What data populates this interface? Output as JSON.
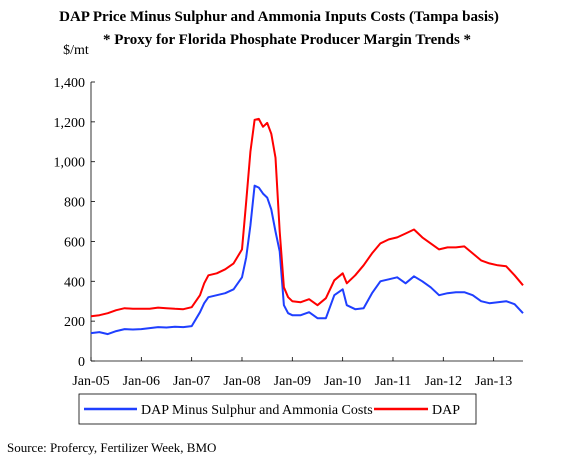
{
  "chart_data": {
    "type": "line",
    "title": "DAP Price Minus Sulphur and Ammonia Inputs Costs (Tampa basis)",
    "subtitle": "* Proxy for Florida Phosphate Producer Margin Trends *",
    "ylabel": "$/mt",
    "ylim": [
      0,
      1400
    ],
    "yticks": [
      0,
      200,
      400,
      600,
      800,
      1000,
      1200,
      1400
    ],
    "ytick_labels": [
      "0",
      "200",
      "400",
      "600",
      "800",
      "1,000",
      "1,200",
      "1,400"
    ],
    "xlim": [
      "2005-01",
      "2013-08"
    ],
    "xtick_labels": [
      "Jan-05",
      "Jan-06",
      "Jan-07",
      "Jan-08",
      "Jan-09",
      "Jan-10",
      "Jan-11",
      "Jan-12",
      "Jan-13"
    ],
    "grid": false,
    "legend": "bottom",
    "series": [
      {
        "name": "DAP Minus Sulphur and Ammonia Costs",
        "color": "#1f3fff",
        "points": [
          [
            "2005-01",
            140
          ],
          [
            "2005-03",
            145
          ],
          [
            "2005-05",
            135
          ],
          [
            "2005-07",
            150
          ],
          [
            "2005-09",
            160
          ],
          [
            "2005-11",
            158
          ],
          [
            "2006-01",
            160
          ],
          [
            "2006-03",
            165
          ],
          [
            "2006-05",
            170
          ],
          [
            "2006-07",
            168
          ],
          [
            "2006-09",
            172
          ],
          [
            "2006-11",
            170
          ],
          [
            "2007-01",
            175
          ],
          [
            "2007-03",
            245
          ],
          [
            "2007-04",
            290
          ],
          [
            "2007-05",
            320
          ],
          [
            "2007-07",
            330
          ],
          [
            "2007-09",
            340
          ],
          [
            "2007-11",
            360
          ],
          [
            "2008-01",
            420
          ],
          [
            "2008-02",
            520
          ],
          [
            "2008-03",
            680
          ],
          [
            "2008-04",
            880
          ],
          [
            "2008-05",
            870
          ],
          [
            "2008-06",
            840
          ],
          [
            "2008-07",
            820
          ],
          [
            "2008-08",
            760
          ],
          [
            "2008-09",
            650
          ],
          [
            "2008-10",
            550
          ],
          [
            "2008-11",
            280
          ],
          [
            "2008-12",
            240
          ],
          [
            "2009-01",
            230
          ],
          [
            "2009-03",
            230
          ],
          [
            "2009-05",
            245
          ],
          [
            "2009-07",
            215
          ],
          [
            "2009-09",
            215
          ],
          [
            "2009-11",
            330
          ],
          [
            "2010-01",
            360
          ],
          [
            "2010-02",
            280
          ],
          [
            "2010-04",
            260
          ],
          [
            "2010-06",
            265
          ],
          [
            "2010-08",
            340
          ],
          [
            "2010-10",
            400
          ],
          [
            "2010-12",
            410
          ],
          [
            "2011-02",
            420
          ],
          [
            "2011-04",
            390
          ],
          [
            "2011-06",
            425
          ],
          [
            "2011-08",
            400
          ],
          [
            "2011-10",
            370
          ],
          [
            "2011-12",
            330
          ],
          [
            "2012-02",
            340
          ],
          [
            "2012-04",
            345
          ],
          [
            "2012-06",
            345
          ],
          [
            "2012-08",
            330
          ],
          [
            "2012-10",
            300
          ],
          [
            "2012-12",
            290
          ],
          [
            "2013-02",
            295
          ],
          [
            "2013-04",
            300
          ],
          [
            "2013-06",
            285
          ],
          [
            "2013-08",
            240
          ]
        ]
      },
      {
        "name": "DAP",
        "color": "#ff0000",
        "points": [
          [
            "2005-01",
            225
          ],
          [
            "2005-03",
            230
          ],
          [
            "2005-05",
            240
          ],
          [
            "2005-07",
            255
          ],
          [
            "2005-09",
            265
          ],
          [
            "2005-11",
            262
          ],
          [
            "2006-01",
            262
          ],
          [
            "2006-03",
            262
          ],
          [
            "2006-05",
            268
          ],
          [
            "2006-07",
            265
          ],
          [
            "2006-09",
            262
          ],
          [
            "2006-11",
            260
          ],
          [
            "2007-01",
            270
          ],
          [
            "2007-03",
            330
          ],
          [
            "2007-04",
            390
          ],
          [
            "2007-05",
            430
          ],
          [
            "2007-07",
            440
          ],
          [
            "2007-09",
            460
          ],
          [
            "2007-11",
            490
          ],
          [
            "2008-01",
            560
          ],
          [
            "2008-02",
            800
          ],
          [
            "2008-03",
            1050
          ],
          [
            "2008-04",
            1210
          ],
          [
            "2008-05",
            1215
          ],
          [
            "2008-06",
            1175
          ],
          [
            "2008-07",
            1195
          ],
          [
            "2008-08",
            1140
          ],
          [
            "2008-09",
            1020
          ],
          [
            "2008-10",
            650
          ],
          [
            "2008-11",
            370
          ],
          [
            "2008-12",
            320
          ],
          [
            "2009-01",
            300
          ],
          [
            "2009-03",
            295
          ],
          [
            "2009-05",
            310
          ],
          [
            "2009-07",
            280
          ],
          [
            "2009-09",
            315
          ],
          [
            "2009-11",
            405
          ],
          [
            "2010-01",
            440
          ],
          [
            "2010-02",
            390
          ],
          [
            "2010-04",
            430
          ],
          [
            "2010-06",
            480
          ],
          [
            "2010-08",
            540
          ],
          [
            "2010-10",
            590
          ],
          [
            "2010-12",
            610
          ],
          [
            "2011-02",
            620
          ],
          [
            "2011-04",
            640
          ],
          [
            "2011-06",
            660
          ],
          [
            "2011-08",
            620
          ],
          [
            "2011-10",
            590
          ],
          [
            "2011-12",
            560
          ],
          [
            "2012-02",
            570
          ],
          [
            "2012-04",
            570
          ],
          [
            "2012-06",
            575
          ],
          [
            "2012-08",
            540
          ],
          [
            "2012-10",
            505
          ],
          [
            "2012-12",
            490
          ],
          [
            "2013-02",
            480
          ],
          [
            "2013-04",
            475
          ],
          [
            "2013-06",
            430
          ],
          [
            "2013-08",
            380
          ]
        ]
      }
    ]
  },
  "source": "Source: Profercy, Fertilizer Week, BMO"
}
